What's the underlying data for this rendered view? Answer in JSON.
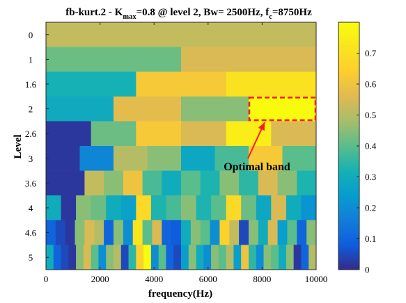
{
  "chart_data": {
    "type": "heatmap",
    "title": {
      "prefix": "fb-kurt.2 - K",
      "kmax_sub": "max",
      "middle": "=0.8 @ level 2, Bw= 2500Hz, f",
      "fc_sub": "c",
      "suffix": "=8750Hz"
    },
    "xlabel": "frequency(Hz)",
    "ylabel": "Level",
    "xlim": [
      0,
      10000
    ],
    "x_ticks": [
      0,
      2000,
      4000,
      6000,
      8000,
      10000
    ],
    "levels": [
      "0",
      "1",
      "1.6",
      "2",
      "2.6",
      "3",
      "3.6",
      "4",
      "4.6",
      "5"
    ],
    "colorbar": {
      "min": 0,
      "max": 0.8,
      "ticks": [
        0,
        0.1,
        0.2,
        0.3,
        0.4,
        0.5,
        0.6,
        0.7
      ],
      "colormap": "parula"
    },
    "rows": [
      {
        "level": "0",
        "values": [
          0.52
        ]
      },
      {
        "level": "1",
        "values": [
          0.42,
          0.55
        ]
      },
      {
        "level": "1.6",
        "values": [
          0.32,
          0.62,
          0.71
        ]
      },
      {
        "level": "2",
        "values": [
          0.29,
          0.57,
          0.45,
          0.8
        ]
      },
      {
        "level": "2.6",
        "values": [
          0.02,
          0.42,
          0.62,
          0.55,
          0.75,
          0.55
        ]
      },
      {
        "level": "3",
        "values": [
          0.02,
          0.18,
          0.5,
          0.45,
          0.28,
          0.38,
          0.62,
          0.4
        ]
      },
      {
        "level": "3.6",
        "values": [
          0.02,
          0.02,
          0.52,
          0.45,
          0.6,
          0.38,
          0.3,
          0.4,
          0.33,
          0.45,
          0.35,
          0.55,
          0.45,
          0.33
        ]
      },
      {
        "level": "4",
        "values": [
          0.3,
          0.02,
          0.45,
          0.42,
          0.3,
          0.26,
          0.68,
          0.33,
          0.38,
          0.45,
          0.33,
          0.4,
          0.68,
          0.42,
          0.28,
          0.55,
          0.3,
          0.22
        ]
      },
      {
        "level": "4.6",
        "values": [
          0.1,
          0.05,
          0.02,
          0.45,
          0.55,
          0.5,
          0.1,
          0.45,
          0.2,
          0.72,
          0.4,
          0.55,
          0.1,
          0.08,
          0.3,
          0.45,
          0.4,
          0.2,
          0.65,
          0.52,
          0.05,
          0.45,
          0.3,
          0.55,
          0.25,
          0.4,
          0.1,
          0.45
        ]
      },
      {
        "level": "5",
        "values": [
          0.3,
          0.1,
          0.05,
          0.02,
          0.45,
          0.55,
          0.4,
          0.2,
          0.45,
          0.5,
          0.05,
          0.35,
          0.65,
          0.8,
          0.2,
          0.4,
          0.1,
          0.05,
          0.25,
          0.45,
          0.3,
          0.2,
          0.45,
          0.4,
          0.5,
          0.25,
          0.6,
          0.35,
          0.2,
          0.45,
          0.4,
          0.3,
          0.45,
          0.02,
          0.1,
          0.5
        ]
      }
    ],
    "highlight": {
      "level": "2",
      "x_start": 7500,
      "x_end": 10000,
      "color": "#ff1a1a"
    },
    "annotation": {
      "text": "Optimal band",
      "color": "#ff1a1a"
    }
  }
}
